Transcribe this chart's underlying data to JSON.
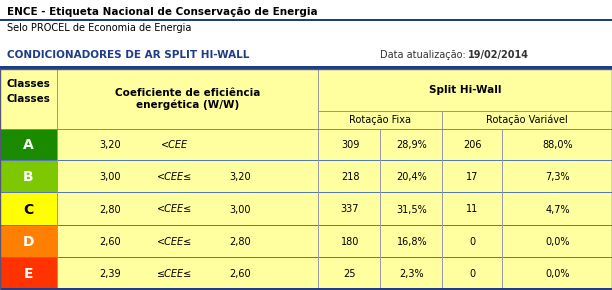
{
  "title1": "ENCE - Etiqueta Nacional de Conservação de Energia",
  "title2": "Selo PROCEL de Economia de Energia",
  "subtitle": "CONDICIONADORES DE AR SPLIT HI-WALL",
  "date_label": "Data atualização:",
  "date_value": "19/02/2014",
  "blue_color": "#1F3C88",
  "dark_blue_line": "#1F3C88",
  "yellow_bg": "#FFFFA0",
  "rows": [
    {
      "class": "A",
      "color": "#1A8A00",
      "text_color": "#FFFFFF",
      "cee_low": "3,20",
      "op": "<CEE",
      "cee_high": "",
      "rf_n": "309",
      "rf_pct": "28,9%",
      "rv_n": "206",
      "rv_pct": "88,0%"
    },
    {
      "class": "B",
      "color": "#7DC800",
      "text_color": "#FFFFFF",
      "cee_low": "3,00",
      "op": "<CEE≤",
      "cee_high": "3,20",
      "rf_n": "218",
      "rf_pct": "20,4%",
      "rv_n": "17",
      "rv_pct": "7,3%"
    },
    {
      "class": "C",
      "color": "#FFFF00",
      "text_color": "#000000",
      "cee_low": "2,80",
      "op": "<CEE≤",
      "cee_high": "3,00",
      "rf_n": "337",
      "rf_pct": "31,5%",
      "rv_n": "11",
      "rv_pct": "4,7%"
    },
    {
      "class": "D",
      "color": "#FF8000",
      "text_color": "#FFFFFF",
      "cee_low": "2,60",
      "op": "<CEE≤",
      "cee_high": "2,80",
      "rf_n": "180",
      "rf_pct": "16,8%",
      "rv_n": "0",
      "rv_pct": "0,0%"
    },
    {
      "class": "E",
      "color": "#FF3300",
      "text_color": "#FFFFFF",
      "cee_low": "2,39",
      "op": "≤CEE≤",
      "cee_high": "2,60",
      "rf_n": "25",
      "rf_pct": "2,3%",
      "rv_n": "0",
      "rv_pct": "0,0%"
    }
  ]
}
